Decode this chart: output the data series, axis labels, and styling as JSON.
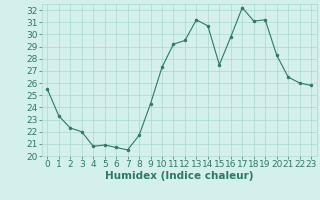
{
  "title": "",
  "xlabel": "Humidex (Indice chaleur)",
  "x": [
    0,
    1,
    2,
    3,
    4,
    5,
    6,
    7,
    8,
    9,
    10,
    11,
    12,
    13,
    14,
    15,
    16,
    17,
    18,
    19,
    20,
    21,
    22,
    23
  ],
  "y": [
    25.5,
    23.3,
    22.3,
    22.0,
    20.8,
    20.9,
    20.7,
    20.5,
    21.7,
    24.3,
    27.3,
    29.2,
    29.5,
    31.2,
    30.7,
    27.5,
    29.8,
    32.2,
    31.1,
    31.2,
    28.3,
    26.5,
    26.0,
    25.8
  ],
  "line_color": "#2a7a68",
  "marker_color": "#2a7a68",
  "bg_color": "#d4f0ec",
  "grid_color": "#aad8d2",
  "tick_color": "#2a7a68",
  "label_color": "#2a7a68",
  "ylim": [
    20,
    32.5
  ],
  "yticks": [
    20,
    21,
    22,
    23,
    24,
    25,
    26,
    27,
    28,
    29,
    30,
    31,
    32
  ],
  "xlim": [
    -0.5,
    23.5
  ],
  "xticks": [
    0,
    1,
    2,
    3,
    4,
    5,
    6,
    7,
    8,
    9,
    10,
    11,
    12,
    13,
    14,
    15,
    16,
    17,
    18,
    19,
    20,
    21,
    22,
    23
  ],
  "font_size": 6.5,
  "xlabel_fontsize": 7.5
}
